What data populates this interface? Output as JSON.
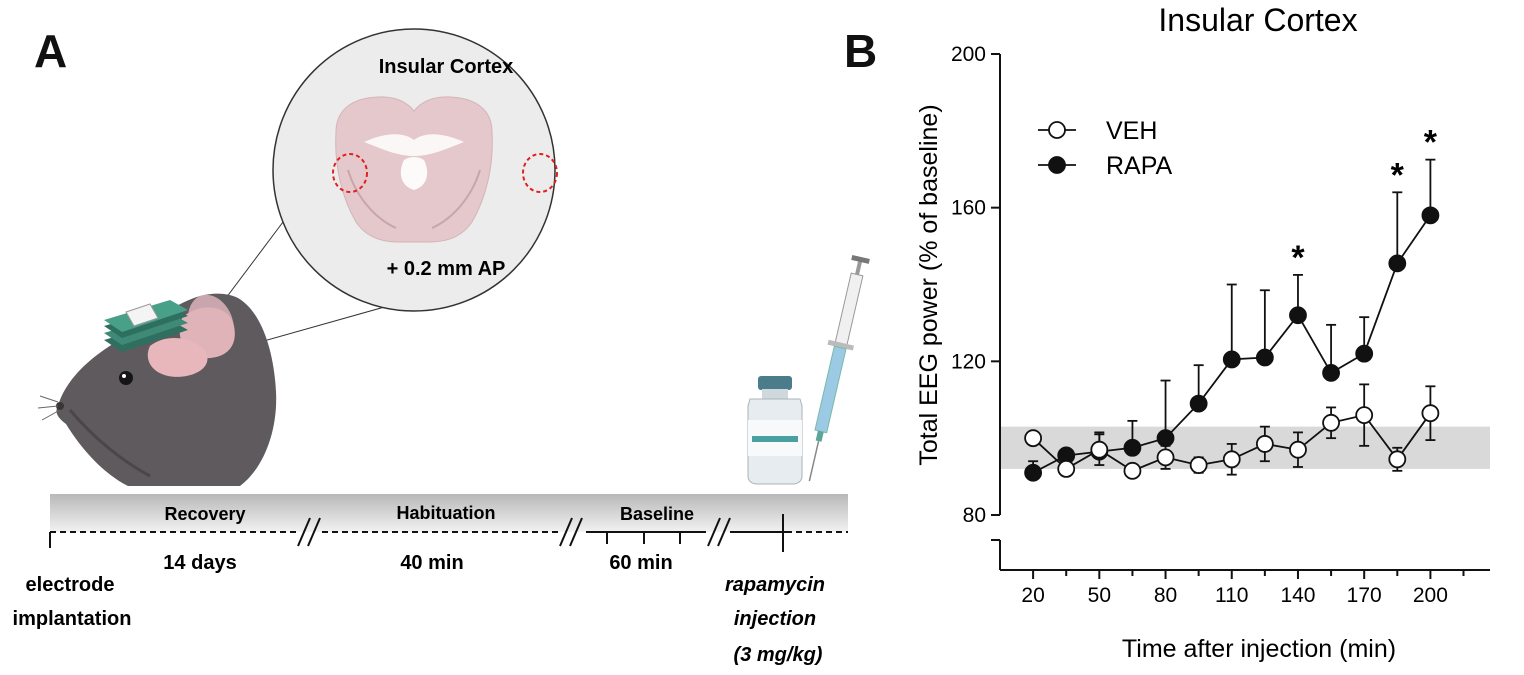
{
  "panel_a": {
    "letter": "A",
    "inset_title": "Insular Cortex",
    "inset_coord": "+ 0.2 mm AP",
    "timeline": {
      "phases": [
        "Recovery",
        "Habituation",
        "Baseline"
      ],
      "durations": [
        "14 days",
        "40 min",
        "60 min"
      ],
      "start_label_1": "electrode",
      "start_label_2": "implantation",
      "end_label_1": "rapamycin",
      "end_label_2": "injection",
      "end_label_3": "(3 mg/kg)"
    },
    "icons": [
      "rat-head-icon",
      "electrode-headstage-icon",
      "brain-section-icon",
      "vial-icon",
      "syringe-icon"
    ]
  },
  "panel_b": {
    "letter": "B"
  },
  "chart_data": {
    "type": "line",
    "title": "Insular Cortex",
    "xlabel": "Time after injection (min)",
    "ylabel": "Total EEG power (% of baseline)",
    "xlim": [
      5,
      227
    ],
    "ylim": [
      80,
      200
    ],
    "xticks": [
      20,
      50,
      80,
      110,
      140,
      170,
      200
    ],
    "yticks": [
      80,
      120,
      160,
      200
    ],
    "y_axis_break": true,
    "legend_position": "top-left",
    "baseline_band": [
      92,
      103
    ],
    "significance_marker": "*",
    "significant_x": [
      140,
      185,
      200
    ],
    "series": [
      {
        "name": "VEH",
        "marker": "open-circle",
        "x": [
          20,
          35,
          50,
          65,
          80,
          95,
          110,
          125,
          140,
          155,
          170,
          185,
          200
        ],
        "y": [
          100,
          92,
          97,
          91.5,
          95,
          93,
          94.5,
          98.5,
          97,
          104,
          106,
          94.5,
          106.5
        ],
        "err": [
          1,
          1.5,
          4,
          1.5,
          3,
          2,
          4,
          4.5,
          4.5,
          4,
          8,
          3,
          7
        ]
      },
      {
        "name": "RAPA",
        "marker": "filled-circle",
        "x": [
          20,
          35,
          50,
          65,
          80,
          95,
          110,
          125,
          140,
          155,
          170,
          185,
          200
        ],
        "y": [
          91,
          95.5,
          96.5,
          97.5,
          100,
          109,
          120.5,
          121,
          132,
          117,
          122,
          145.5,
          158
        ],
        "err": [
          3,
          1.5,
          5,
          7,
          15,
          10,
          19.5,
          17.5,
          10.5,
          12.5,
          9.5,
          18.5,
          14.5
        ]
      }
    ]
  }
}
